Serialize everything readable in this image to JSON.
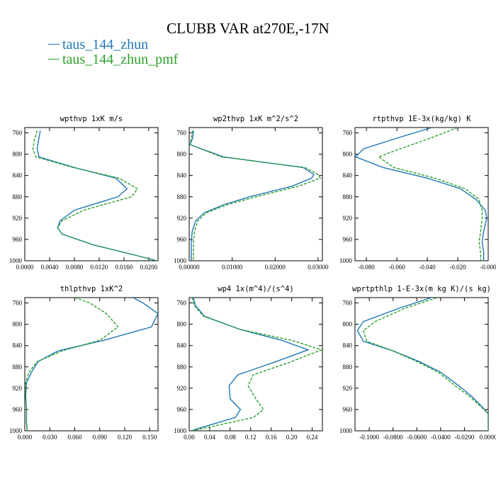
{
  "title": "CLUBB VAR at270E,-17N",
  "colors": {
    "series1": "#1f77b4",
    "series2": "#2ca02c"
  },
  "legend": [
    {
      "label": "taus_144_zhun",
      "color": "#1f77b4",
      "style": "solid"
    },
    {
      "label": "taus_144_zhun_pmf",
      "color": "#2ca02c",
      "style": "dashed"
    }
  ],
  "chart_data": [
    {
      "type": "line",
      "title": "wpthvp  1xK m/s",
      "ylim": [
        1000,
        750
      ],
      "yticks": [
        "760",
        "800",
        "840",
        "880",
        "920",
        "960",
        "1000"
      ],
      "xlim": [
        0,
        0.0215
      ],
      "xticks": [
        "0.0000",
        "0.0040",
        "0.0080",
        "0.0120",
        "0.0160",
        "0.0200"
      ],
      "pressure": [
        756,
        775,
        790,
        805,
        825,
        845,
        865,
        880,
        905,
        925,
        938,
        950,
        970,
        990,
        1000
      ],
      "series": [
        {
          "name": "taus_144_zhun",
          "values": [
            0.0025,
            0.0022,
            0.002,
            0.0023,
            0.008,
            0.0147,
            0.0165,
            0.015,
            0.008,
            0.0057,
            0.0053,
            0.006,
            0.011,
            0.018,
            0.0213
          ]
        },
        {
          "name": "taus_144_zhun_pmf",
          "values": [
            0.002,
            0.0015,
            0.0013,
            0.0018,
            0.0078,
            0.0152,
            0.0182,
            0.0172,
            0.0095,
            0.006,
            0.0053,
            0.006,
            0.011,
            0.018,
            0.0213
          ]
        }
      ]
    },
    {
      "type": "line",
      "title": "wp2thvp  1xK m^2/s^2",
      "ylim": [
        1000,
        750
      ],
      "yticks": [
        "760",
        "800",
        "840",
        "880",
        "920",
        "960",
        "1000"
      ],
      "xlim": [
        0,
        0.031
      ],
      "xticks": [
        "0.00000",
        "0.01000",
        "0.02000",
        "0.03000"
      ],
      "pressure": [
        756,
        770,
        782,
        805,
        825,
        838,
        845,
        860,
        880,
        895,
        910,
        925,
        945,
        965,
        985,
        1000
      ],
      "series": [
        {
          "name": "taus_144_zhun",
          "values": [
            0.001,
            0.0008,
            0.0002,
            0.008,
            0.0265,
            0.029,
            0.0285,
            0.024,
            0.014,
            0.008,
            0.0035,
            0.0015,
            0.0007,
            0.0005,
            0.0005,
            0.0005
          ]
        },
        {
          "name": "taus_144_zhun_pmf",
          "values": [
            0.0008,
            0.0005,
            0.0002,
            0.0075,
            0.027,
            0.03,
            0.0305,
            0.0255,
            0.0155,
            0.0088,
            0.004,
            0.002,
            0.0012,
            0.001,
            0.001,
            0.001
          ]
        }
      ]
    },
    {
      "type": "line",
      "title": "rtpthvp  1E-3x(kg/kg) K",
      "ylim": [
        1000,
        750
      ],
      "yticks": [
        "760",
        "800",
        "840",
        "880",
        "920",
        "960",
        "1000"
      ],
      "xlim": [
        -0.0875,
        0.0
      ],
      "xticks": [
        "-0.080",
        "-0.060",
        "-0.040",
        "-0.020",
        "-0.000"
      ],
      "pressure": [
        750,
        770,
        790,
        805,
        825,
        845,
        865,
        885,
        905,
        920,
        945,
        965,
        985,
        1000
      ],
      "series": [
        {
          "name": "taus_144_zhun",
          "values": [
            -0.037,
            -0.06,
            -0.082,
            -0.087,
            -0.069,
            -0.04,
            -0.018,
            -0.008,
            -0.002,
            -0.001,
            -0.003,
            -0.004,
            -0.003,
            -0.003
          ]
        },
        {
          "name": "taus_144_zhun_pmf",
          "values": [
            -0.02,
            -0.038,
            -0.058,
            -0.072,
            -0.062,
            -0.035,
            -0.015,
            -0.006,
            -0.004,
            -0.004,
            -0.005,
            -0.006,
            -0.005,
            -0.005
          ]
        }
      ]
    },
    {
      "type": "line",
      "title": "thlpthvp  1xK^2",
      "ylim": [
        1000,
        750
      ],
      "yticks": [
        "760",
        "800",
        "840",
        "880",
        "920",
        "960",
        "1000"
      ],
      "xlim": [
        0,
        0.16
      ],
      "xticks": [
        "0.000",
        "0.030",
        "0.060",
        "0.090",
        "0.120",
        "0.150"
      ],
      "pressure": [
        750,
        760,
        780,
        805,
        830,
        850,
        870,
        890,
        910,
        935,
        960,
        985,
        1000
      ],
      "series": [
        {
          "name": "taus_144_zhun",
          "values": [
            0.13,
            0.142,
            0.16,
            0.152,
            0.095,
            0.04,
            0.016,
            0.008,
            0.002,
            0.001,
            0.002,
            0.002,
            0.003
          ]
        },
        {
          "name": "taus_144_zhun_pmf",
          "values": [
            0.06,
            0.078,
            0.098,
            0.112,
            0.09,
            0.045,
            0.015,
            0.005,
            0.001,
            0.001,
            0.002,
            0.002,
            0.003
          ]
        }
      ]
    },
    {
      "type": "line",
      "title": "wp4  1x(m^4)/(s^4)",
      "ylim": [
        1000,
        750
      ],
      "yticks": [
        "760",
        "800",
        "840",
        "880",
        "920",
        "960",
        "1000"
      ],
      "xlim": [
        0,
        0.26
      ],
      "xticks": [
        "0.00",
        "0.04",
        "0.08",
        "0.12",
        "0.16",
        "0.20",
        "0.24"
      ],
      "pressure": [
        750,
        765,
        785,
        810,
        830,
        848,
        870,
        895,
        915,
        940,
        960,
        975,
        995,
        1000
      ],
      "series": [
        {
          "name": "taus_144_zhun",
          "values": [
            0.008,
            0.012,
            0.03,
            0.1,
            0.18,
            0.232,
            0.17,
            0.095,
            0.078,
            0.08,
            0.1,
            0.09,
            0.02,
            0.004
          ]
        },
        {
          "name": "taus_144_zhun_pmf",
          "values": [
            0.006,
            0.01,
            0.028,
            0.1,
            0.2,
            0.258,
            0.2,
            0.125,
            0.115,
            0.13,
            0.145,
            0.125,
            0.03,
            0.004
          ]
        }
      ]
    },
    {
      "type": "line",
      "title": "wprtpthlp  1-E-3x(m kg K)/(s kg)",
      "ylim": [
        1000,
        750
      ],
      "yticks": [
        "760",
        "800",
        "840",
        "880",
        "920",
        "960",
        "1000"
      ],
      "xlim": [
        -0.112,
        0.0
      ],
      "xticks": [
        "-0.1000",
        "-0.0800",
        "-0.0600",
        "-0.0400",
        "-0.0200",
        "0.0000"
      ],
      "pressure": [
        748,
        770,
        795,
        812,
        832,
        850,
        870,
        890,
        915,
        935,
        955,
        968,
        985,
        1000
      ],
      "series": [
        {
          "name": "taus_144_zhun",
          "values": [
            -0.045,
            -0.075,
            -0.105,
            -0.11,
            -0.105,
            -0.08,
            -0.058,
            -0.04,
            -0.025,
            -0.014,
            -0.005,
            0.0,
            0.0,
            0.0
          ]
        },
        {
          "name": "taus_144_zhun_pmf",
          "values": [
            -0.04,
            -0.07,
            -0.095,
            -0.105,
            -0.102,
            -0.08,
            -0.06,
            -0.042,
            -0.028,
            -0.016,
            -0.006,
            0.0,
            0.0,
            0.0
          ]
        }
      ]
    }
  ]
}
